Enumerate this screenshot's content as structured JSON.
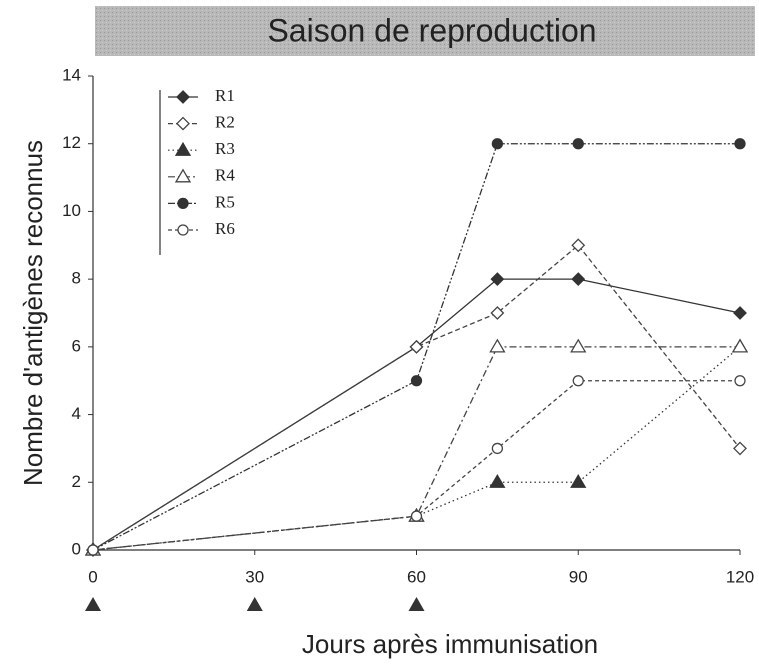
{
  "chart_data": {
    "type": "line",
    "title": "Saison de reproduction",
    "xlabel": "Jours après immunisation",
    "ylabel": "Nombre d'antigènes reconnus",
    "x": [
      0,
      60,
      75,
      90,
      120
    ],
    "xlim": [
      0,
      120
    ],
    "xticks": [
      0,
      30,
      60,
      90,
      120
    ],
    "ylim": [
      0,
      14
    ],
    "yticks": [
      0,
      2,
      4,
      6,
      8,
      10,
      12,
      14
    ],
    "immunization_days": [
      0,
      30,
      60
    ],
    "series": [
      {
        "name": "R1",
        "color": "#333333",
        "marker": "diamond",
        "filled": true,
        "dash": "none",
        "values": [
          0,
          6,
          8,
          8,
          7
        ]
      },
      {
        "name": "R2",
        "color": "#444444",
        "marker": "diamond",
        "filled": false,
        "dash": "5,3",
        "values": [
          0,
          6,
          7,
          9,
          3
        ]
      },
      {
        "name": "R3",
        "color": "#333333",
        "marker": "triangle",
        "filled": true,
        "dash": "1.5,3",
        "values": [
          0,
          1,
          2,
          2,
          6
        ]
      },
      {
        "name": "R4",
        "color": "#444444",
        "marker": "triangle",
        "filled": false,
        "dash": "7,3,2,3",
        "values": [
          0,
          1,
          6,
          6,
          6
        ]
      },
      {
        "name": "R5",
        "color": "#333333",
        "marker": "circle",
        "filled": true,
        "dash": "7,2,2,2,2,2",
        "values": [
          0,
          5,
          12,
          12,
          12
        ]
      },
      {
        "name": "R6",
        "color": "#444444",
        "marker": "circle",
        "filled": false,
        "dash": "4,3",
        "values": [
          0,
          1,
          3,
          5,
          5
        ]
      }
    ]
  }
}
